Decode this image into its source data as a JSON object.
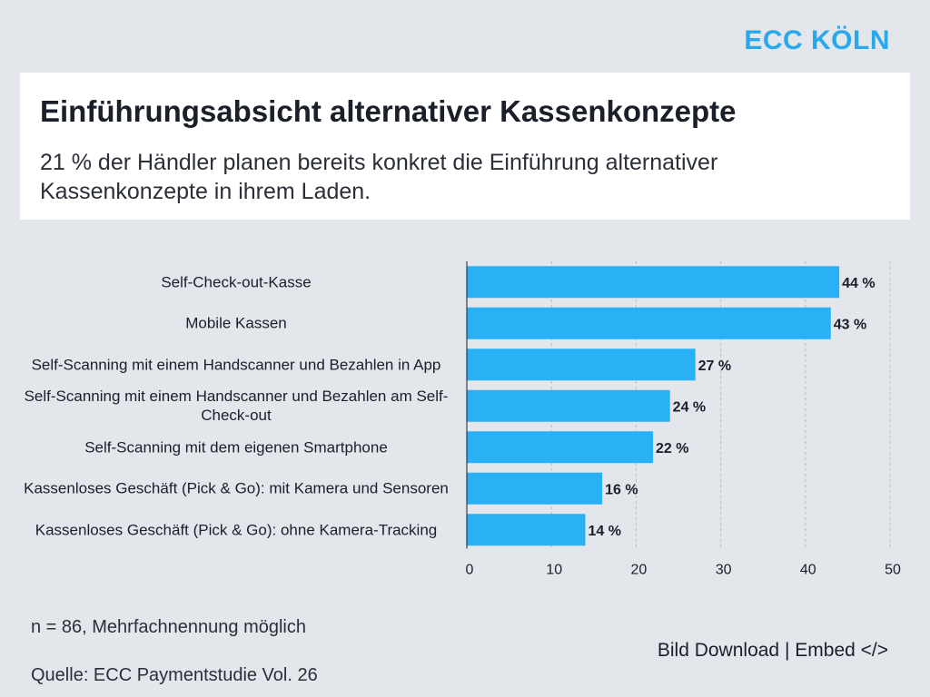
{
  "brand": "ECC KÖLN",
  "header": {
    "title": "Einführungsabsicht alternativer Kassenkonzepte",
    "subtitle": "21 % der Händler planen bereits konkret die Einführung alternativer Kassenkonzepte in ihrem Laden."
  },
  "chart_data": {
    "type": "bar",
    "orientation": "horizontal",
    "categories": [
      "Self-Check-out-Kasse",
      "Mobile Kassen",
      "Self-Scanning mit einem Handscanner und Bezahlen in App",
      "Self-Scanning mit einem Handscanner und Bezahlen am Self-Check-out",
      "Self-Scanning mit dem eigenen Smartphone",
      "Kassenloses Geschäft (Pick & Go): mit Kamera und Sensoren",
      "Kassenloses Geschäft (Pick & Go): ohne Kamera-Tracking"
    ],
    "values": [
      44,
      43,
      27,
      24,
      22,
      16,
      14
    ],
    "value_labels": [
      "44 %",
      "43 %",
      "27 %",
      "24 %",
      "22 %",
      "16 %",
      "14 %"
    ],
    "xticks": [
      "0",
      "10",
      "20",
      "30",
      "40",
      "50"
    ],
    "xlim": [
      0,
      50
    ],
    "grid": "vertical dashed",
    "bar_color": "#29b0f5"
  },
  "footer": {
    "sample": "n = 86, Mehrfachnennung möglich",
    "source": "Quelle: ECC Paymentstudie Vol. 26",
    "download": "Bild Download",
    "separator": "|",
    "embed": "Embed </>"
  }
}
